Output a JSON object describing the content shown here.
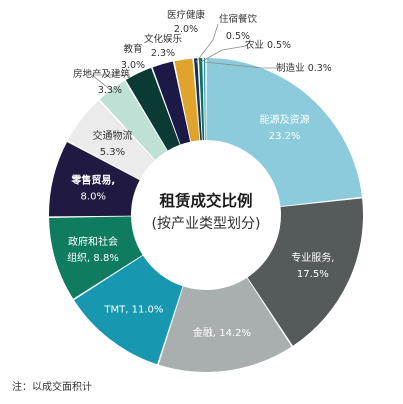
{
  "chart_data": {
    "type": "pie",
    "style": "donut",
    "title": "租赁成交比例",
    "subtitle": "(按产业类型划分)",
    "unit": "%",
    "slices": [
      {
        "label": "能源及资源",
        "value": 23.2,
        "value_label": "23.2%",
        "color": "#8ccbdc",
        "label_color": "#ffffff",
        "label_inside": true
      },
      {
        "label": "专业服务,",
        "value": 17.5,
        "value_label": "17.5%",
        "color": "#555a5a",
        "label_color": "#ffffff",
        "label_inside": true
      },
      {
        "label": "金融,",
        "value": 14.2,
        "value_label": "14.2%",
        "color": "#a9afaf",
        "label_color": "#ffffff",
        "label_inside": true
      },
      {
        "label": "TMT,",
        "value": 11.0,
        "value_label": "11.0%",
        "color": "#1798b0",
        "label_color": "#ffffff",
        "label_inside": true
      },
      {
        "label": "政府和社会",
        "label2": "组织,",
        "value": 8.8,
        "value_label": "8.8%",
        "color": "#0f7c60",
        "label_color": "#ffffff",
        "label_inside": true
      },
      {
        "label": "零售贸易,",
        "value": 8.0,
        "value_label": "8.0%",
        "color": "#201942",
        "label_color": "#ffffff",
        "label_inside": true
      },
      {
        "label": "交通物流",
        "value": 5.3,
        "value_label": "5.3%",
        "color": "#ebebeb",
        "label_color": "#333333",
        "label_inside": true
      },
      {
        "label": "房地产及建筑",
        "value": 3.3,
        "value_label": "3.3%",
        "color": "#bfe0d5",
        "label_color": "#333333",
        "label_inside": false
      },
      {
        "label": "教育",
        "value": 3.0,
        "value_label": "3.0%",
        "color": "#0b3a34",
        "label_color": "#333333",
        "label_inside": false
      },
      {
        "label": "文化娱乐",
        "value": 2.3,
        "value_label": "2.3%",
        "color": "#1d1947",
        "label_color": "#333333",
        "label_inside": false
      },
      {
        "label": "医疗健康",
        "value": 2.0,
        "value_label": "2.0%",
        "color": "#e0a42c",
        "label_color": "#333333",
        "label_inside": false
      },
      {
        "label": "住宿餐饮",
        "value": 0.5,
        "value_label": "0.5%",
        "color": "#11305e",
        "label_color": "#333333",
        "label_inside": false
      },
      {
        "label": "农业",
        "value": 0.5,
        "value_label": "0.5%",
        "color": "#0e6f5b",
        "label_color": "#333333",
        "label_inside": false
      },
      {
        "label": "制造业",
        "value": 0.3,
        "value_label": "0.3%",
        "color": "#1a8aa8",
        "label_color": "#333333",
        "label_inside": false
      }
    ]
  },
  "footnote": "注：以成交面积计"
}
